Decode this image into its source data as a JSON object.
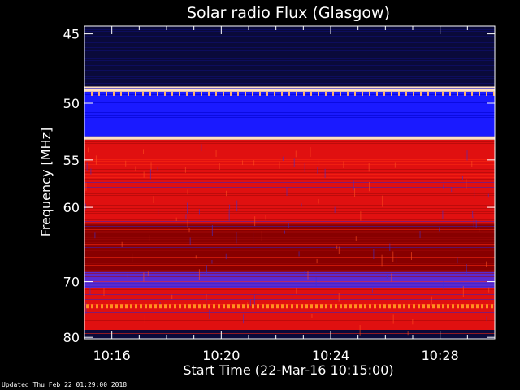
{
  "chart_data": {
    "type": "heatmap",
    "title": "Solar radio Flux (Glasgow)",
    "ylabel": "Frequency [MHz]",
    "xlabel": "Start Time (22-Mar-16 10:15:00)",
    "y_ticks": [
      "45",
      "50",
      "55",
      "60",
      "70",
      "80"
    ],
    "y_tick_values": [
      45,
      50,
      55,
      60,
      70,
      80
    ],
    "ylim": [
      44.5,
      80.3
    ],
    "y_scale": "reciprocal",
    "x_ticks": [
      "10:16",
      "10:20",
      "10:24",
      "10:28"
    ],
    "x_tick_minutes": [
      1,
      5,
      9,
      13
    ],
    "xlim_minutes": [
      0,
      15
    ],
    "bands": [
      {
        "from": 44.5,
        "to": 48.7,
        "level": "low"
      },
      {
        "from": 48.7,
        "to": 49.1,
        "level": "saturated"
      },
      {
        "from": 49.1,
        "to": 52.8,
        "level": "medium-low"
      },
      {
        "from": 52.8,
        "to": 53.1,
        "level": "saturated"
      },
      {
        "from": 53.1,
        "to": 62.0,
        "level": "high"
      },
      {
        "from": 62.0,
        "to": 68.5,
        "level": "mixed"
      },
      {
        "from": 68.5,
        "to": 71.0,
        "level": "medium"
      },
      {
        "from": 71.0,
        "to": 78.5,
        "level": "high"
      },
      {
        "from": 78.5,
        "to": 80.3,
        "level": "low"
      }
    ],
    "colors": {
      "low": "#0a0a3a",
      "medium-low": "#1a1aff",
      "medium": "#5a2ad0",
      "high": "#e01010",
      "saturated": "#ffe0c0"
    }
  },
  "footer": "Updated Thu Feb 22 01:29:00 2018"
}
